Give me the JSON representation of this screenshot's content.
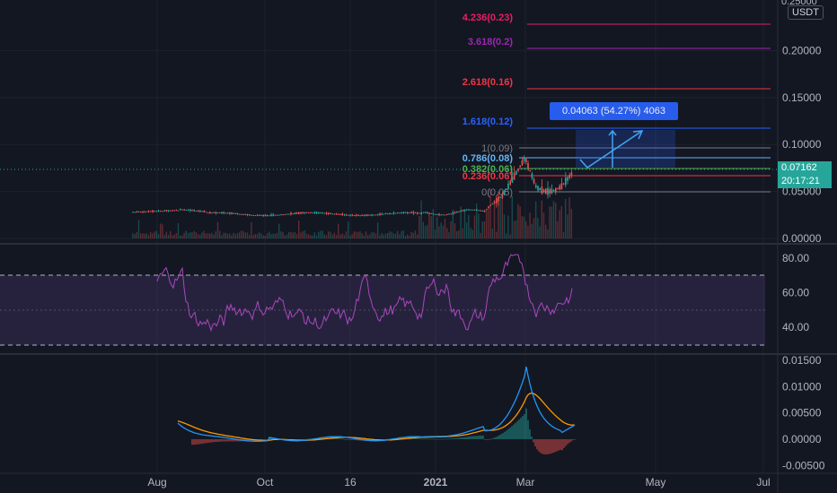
{
  "quote_currency": "USDT",
  "last_price": "0.07162",
  "countdown": "20:17:21",
  "top_cut_tick": "0.25000",
  "measure_label": "0.04063 (54.27%) 4063",
  "colors": {
    "background": "#131722",
    "up": "#26a69a",
    "down": "#ef5350",
    "rsi": "#ab47bc",
    "macd": "#2196f3",
    "signal": "#ff9800"
  },
  "chart_data": [
    {
      "type": "line",
      "panel": "price",
      "yticks": [
        "0.20000",
        "0.15000",
        "0.10000",
        "0.05000",
        "0.00000"
      ],
      "ylim": [
        0,
        0.25
      ],
      "x_tick_labels": [
        "Aug",
        "Oct",
        "16",
        "2021",
        "Mar",
        "May",
        "Jul"
      ],
      "fib_levels": [
        {
          "label": "4.236(0.23)",
          "value": 0.23,
          "color": "#e91e63"
        },
        {
          "label": "3.618(0.2)",
          "value": 0.2,
          "color": "#9c27b0"
        },
        {
          "label": "2.618(0.16)",
          "value": 0.16,
          "color": "#f23645"
        },
        {
          "label": "1.618(0.12)",
          "value": 0.12,
          "color": "#2962ff"
        },
        {
          "label": "1(0.09)",
          "value": 0.09,
          "color": "#787b86"
        },
        {
          "label": "0.786(0.08)",
          "value": 0.08,
          "color": "#64b5f6"
        },
        {
          "label": "0.382(0.06)",
          "value": 0.065,
          "color": "#4caf50"
        },
        {
          "label": "0.236(0.06)",
          "value": 0.058,
          "color": "#f23645"
        },
        {
          "label": "0(0.05)",
          "value": 0.05,
          "color": "#787b86"
        }
      ]
    },
    {
      "type": "line",
      "panel": "rsi",
      "yticks": [
        "80.00",
        "60.00",
        "40.00"
      ],
      "ylim": [
        27,
        83
      ],
      "band": [
        30,
        70
      ]
    },
    {
      "type": "line",
      "panel": "macd",
      "yticks": [
        "0.01500",
        "0.01000",
        "0.00500",
        "0.00000",
        "-0.00500"
      ],
      "ylim": [
        -0.0065,
        0.0162
      ]
    }
  ]
}
